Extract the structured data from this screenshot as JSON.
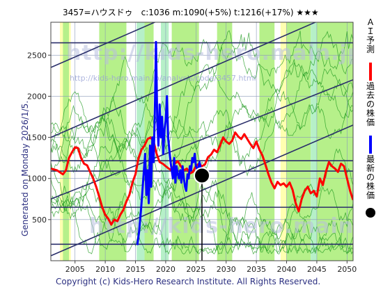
{
  "header": {
    "title": "3457=ハウスドゥ　c:1036  m:1090(+5%)  t:1216(+17%)  ★★★"
  },
  "side_label": "Generated on Monday 2026/1/5.",
  "footer": "Copyright (c) Kids-Hero Research Institute. All Rights Reserved.",
  "watermark": {
    "main": "http://kids-hero.main.jp/",
    "sub": "http://kids-hero.main.jp/analysis/code/3457.html",
    "bottom": "http://kids-hero.main.jp"
  },
  "legend": [
    {
      "label": "ＡＩ予測",
      "color": "#ff0000",
      "marker": "line"
    },
    {
      "label": "過去の株価",
      "color": "#0000ff",
      "marker": "line"
    },
    {
      "label": "最新の株価",
      "color": "#000000",
      "marker": "dot"
    }
  ],
  "colors": {
    "band_green": "#b6f08a",
    "band_yellow": "#ffffb0",
    "band_mint": "#b6f0c8",
    "grid": "#8a9ab8",
    "channel": "#2a2f6a",
    "sim": "#1f9a1f",
    "ai": "#ff0000",
    "past": "#0000ff"
  },
  "chart_data": {
    "type": "line",
    "xlim": [
      2001,
      2051
    ],
    "ylim": [
      0,
      2900
    ],
    "x_ticks": [
      2005,
      2010,
      2015,
      2020,
      2025,
      2030,
      2035,
      2040,
      2045,
      2050
    ],
    "y_ticks": [
      500,
      1000,
      1500,
      2000,
      2500
    ],
    "grid": true,
    "legend_position": "right",
    "current": {
      "x": 2026.0,
      "y": 1036
    },
    "hlines": [
      200,
      650,
      1090,
      1216,
      2650
    ],
    "channel_lines": [
      {
        "x": [
          2001,
          2051
        ],
        "y": [
          2350,
          3950
        ]
      },
      {
        "x": [
          2001,
          2051
        ],
        "y": [
          1500,
          3100
        ]
      },
      {
        "x": [
          2001,
          2051
        ],
        "y": [
          750,
          2200
        ]
      },
      {
        "x": [
          2001,
          2051
        ],
        "y": [
          60,
          1650
        ]
      }
    ],
    "bands": [
      {
        "x0": 2002.5,
        "x1": 2004.3,
        "kind": "yellow"
      },
      {
        "x0": 2003.0,
        "x1": 2004.0,
        "kind": "green"
      },
      {
        "x0": 2009.0,
        "x1": 2013.5,
        "kind": "green"
      },
      {
        "x0": 2015.2,
        "x1": 2016.5,
        "kind": "mint"
      },
      {
        "x0": 2016.5,
        "x1": 2018.0,
        "kind": "green"
      },
      {
        "x0": 2019.2,
        "x1": 2020.5,
        "kind": "mint"
      },
      {
        "x0": 2021.0,
        "x1": 2025.5,
        "kind": "green"
      },
      {
        "x0": 2028.5,
        "x1": 2031.0,
        "kind": "green"
      },
      {
        "x0": 2035.5,
        "x1": 2038.0,
        "kind": "green"
      },
      {
        "x0": 2039.0,
        "x1": 2040.0,
        "kind": "yellow"
      },
      {
        "x0": 2040.0,
        "x1": 2044.0,
        "kind": "green"
      },
      {
        "x0": 2044.0,
        "x1": 2045.0,
        "kind": "mint"
      },
      {
        "x0": 2045.0,
        "x1": 2051.0,
        "kind": "green"
      }
    ],
    "series": [
      {
        "name": "ＡＩ予測",
        "x": [
          2001.0,
          2002.0,
          2003.0,
          2003.5,
          2004.0,
          2004.5,
          2005.0,
          2005.5,
          2006.0,
          2006.5,
          2007.0,
          2007.5,
          2008.0,
          2008.5,
          2009.0,
          2009.5,
          2010.0,
          2010.5,
          2011.0,
          2011.5,
          2012.0,
          2012.5,
          2013.0,
          2013.5,
          2014.0,
          2014.5,
          2015.0,
          2015.5,
          2016.0,
          2016.5,
          2017.0,
          2017.5,
          2018.0,
          2018.5,
          2019.0,
          2019.5,
          2020.0,
          2020.5,
          2021.0,
          2021.5,
          2022.0,
          2022.5,
          2023.0,
          2023.5,
          2024.0,
          2024.5,
          2025.0,
          2025.5,
          2026.0,
          2026.5,
          2027.0,
          2027.5,
          2028.0,
          2028.5,
          2029.0,
          2029.5,
          2030.0,
          2030.5,
          2031.0,
          2031.5,
          2032.0,
          2032.5,
          2033.0,
          2033.5,
          2034.0,
          2034.5,
          2035.0,
          2035.5,
          2036.0,
          2036.5,
          2037.0,
          2037.5,
          2038.0,
          2038.5,
          2039.0,
          2039.5,
          2040.0,
          2040.5,
          2041.0,
          2041.5,
          2042.0,
          2042.5,
          2043.0,
          2043.5,
          2044.0,
          2044.5,
          2045.0,
          2045.5,
          2046.0,
          2046.5,
          2047.0,
          2047.5,
          2048.0,
          2048.5,
          2049.0,
          2049.5,
          2050.0,
          2050.5,
          2051.0
        ],
        "y": [
          1120,
          1100,
          1050,
          1100,
          1250,
          1320,
          1380,
          1370,
          1250,
          1180,
          1160,
          1080,
          1000,
          900,
          780,
          650,
          560,
          510,
          440,
          500,
          480,
          560,
          620,
          720,
          800,
          950,
          1050,
          1250,
          1350,
          1400,
          1480,
          1500,
          1450,
          1300,
          1200,
          1180,
          1150,
          1120,
          1100,
          1180,
          1210,
          1150,
          1100,
          1120,
          1060,
          1080,
          1150,
          1180,
          1150,
          1170,
          1260,
          1290,
          1350,
          1320,
          1400,
          1500,
          1450,
          1420,
          1460,
          1560,
          1510,
          1480,
          1540,
          1480,
          1420,
          1370,
          1450,
          1350,
          1280,
          1170,
          1050,
          950,
          880,
          960,
          920,
          940,
          900,
          950,
          860,
          700,
          600,
          750,
          850,
          900,
          820,
          850,
          780,
          1000,
          920,
          1080,
          1200,
          1150,
          1120,
          1080,
          1180,
          1150,
          1000,
          850,
          740
        ]
      },
      {
        "name": "過去の株価",
        "x": [
          2015.3,
          2015.6,
          2015.9,
          2016.1,
          2016.3,
          2016.6,
          2016.8,
          2017.0,
          2017.2,
          2017.4,
          2017.6,
          2017.8,
          2018.0,
          2018.2,
          2018.4,
          2018.6,
          2018.8,
          2019.0,
          2019.2,
          2019.4,
          2019.6,
          2019.8,
          2020.0,
          2020.2,
          2020.4,
          2020.6,
          2020.8,
          2021.0,
          2021.2,
          2021.4,
          2021.6,
          2021.8,
          2022.0,
          2022.2,
          2022.4,
          2022.6,
          2022.8,
          2023.0,
          2023.2,
          2023.4,
          2023.6,
          2023.8,
          2024.0,
          2024.2,
          2024.4,
          2024.6,
          2024.8,
          2025.0,
          2025.3,
          2025.6,
          2026.0
        ],
        "y": [
          190,
          350,
          600,
          800,
          1000,
          1300,
          800,
          1100,
          700,
          1400,
          900,
          1500,
          1200,
          1800,
          2660,
          1700,
          1400,
          1900,
          1500,
          1750,
          1300,
          1600,
          1700,
          2000,
          1500,
          1350,
          1200,
          1100,
          1000,
          1250,
          950,
          1150,
          1050,
          1000,
          1100,
          950,
          1150,
          1000,
          900,
          850,
          1050,
          1000,
          1150,
          1100,
          1250,
          1200,
          1300,
          1150,
          1100,
          1200,
          1036
        ]
      }
    ]
  }
}
